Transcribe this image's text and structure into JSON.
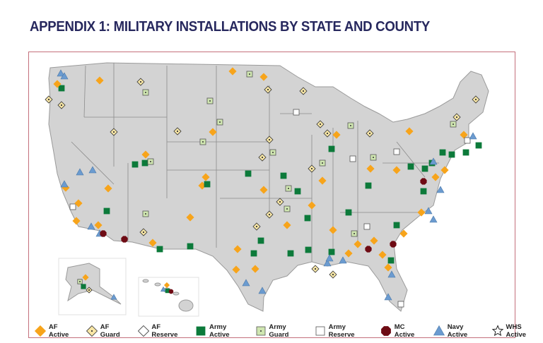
{
  "title": "APPENDIX 1: MILITARY INSTALLATIONS BY STATE AND COUNTY",
  "legend": [
    {
      "key": "afa",
      "label": "AF Active",
      "shape": "diamond",
      "color": "#f7a41b"
    },
    {
      "key": "afg",
      "label": "AF Guard",
      "shape": "diamond-dot",
      "color": "#f9e7a6"
    },
    {
      "key": "afr",
      "label": "AF Reserve",
      "shape": "diamond",
      "color": "#ffffff"
    },
    {
      "key": "arma",
      "label": "Army Active",
      "shape": "square",
      "color": "#0c7a3a"
    },
    {
      "key": "armg",
      "label": "Army Guard",
      "shape": "square-dot",
      "color": "#cfe6b0"
    },
    {
      "key": "armr",
      "label": "Army Reserve",
      "shape": "square",
      "color": "#ffffff"
    },
    {
      "key": "mc",
      "label": "MC Active",
      "shape": "octagon",
      "color": "#6e0b14"
    },
    {
      "key": "navy",
      "label": "Navy Active",
      "shape": "triangle",
      "color": "#6b9bd0"
    },
    {
      "key": "whs",
      "label": "WHS Active",
      "shape": "star",
      "color": "#ffffff"
    }
  ],
  "colors": {
    "land": "#d3d3d3",
    "border": "#9a9a9a",
    "frame": "#c46f7c",
    "title": "#27285e"
  }
}
